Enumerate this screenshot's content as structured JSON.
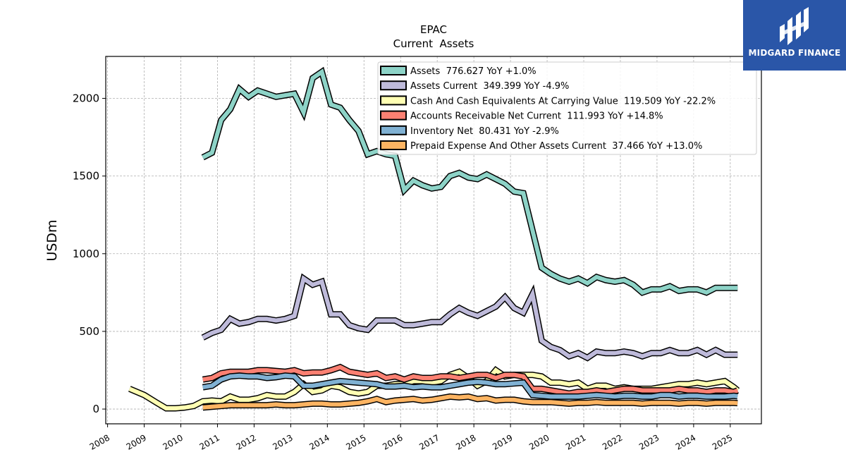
{
  "chart_data": {
    "type": "line",
    "title": "EPAC",
    "subtitle": "Current  Assets",
    "ylabel": "USDm",
    "xlim": [
      2007.95,
      2025.85
    ],
    "ylim": [
      -95,
      2270
    ],
    "yticks": [
      0,
      500,
      1000,
      1500,
      2000
    ],
    "xticks": [
      "2008",
      "2009",
      "2010",
      "2011",
      "2012",
      "2013",
      "2014",
      "2015",
      "2016",
      "2017",
      "2018",
      "2019",
      "2020",
      "2021",
      "2022",
      "2023",
      "2024",
      "2025"
    ],
    "grid": true,
    "legend_position": "top-right",
    "series": [
      {
        "name": "Assets",
        "legend": "Assets  776.627 YoY +1.0%",
        "color": "#8dd3c7",
        "x": [
          2010.6,
          2010.85,
          2011.1,
          2011.35,
          2011.6,
          2011.85,
          2012.1,
          2012.35,
          2012.6,
          2012.85,
          2013.1,
          2013.35,
          2013.6,
          2013.85,
          2014.1,
          2014.35,
          2014.6,
          2014.85,
          2015.1,
          2015.35,
          2015.6,
          2015.85,
          2016.1,
          2016.35,
          2016.6,
          2016.85,
          2017.1,
          2017.35,
          2017.6,
          2017.85,
          2018.1,
          2018.35,
          2018.6,
          2018.85,
          2019.1,
          2019.35,
          2019.6,
          2019.85,
          2020.1,
          2020.35,
          2020.6,
          2020.85,
          2021.1,
          2021.35,
          2021.6,
          2021.85,
          2022.1,
          2022.35,
          2022.6,
          2022.85,
          2023.1,
          2023.35,
          2023.6,
          2023.85,
          2024.1,
          2024.35,
          2024.6,
          2024.85,
          2025.1,
          2025.2
        ],
        "y": [
          1620,
          1650,
          1860,
          1930,
          2060,
          2010,
          2050,
          2030,
          2010,
          2020,
          2030,
          1910,
          2130,
          2170,
          1960,
          1940,
          1860,
          1790,
          1640,
          1660,
          1640,
          1630,
          1410,
          1470,
          1440,
          1420,
          1430,
          1500,
          1520,
          1490,
          1480,
          1510,
          1480,
          1450,
          1400,
          1390,
          1150,
          910,
          870,
          840,
          820,
          840,
          810,
          850,
          830,
          820,
          830,
          800,
          750,
          770,
          770,
          790,
          760,
          770,
          770,
          750,
          780,
          780,
          780,
          780
        ]
      },
      {
        "name": "Assets Current",
        "legend": "Assets Current  349.399 YoY -4.9%",
        "color": "#bebada",
        "x": [
          2010.6,
          2010.85,
          2011.1,
          2011.35,
          2011.6,
          2011.85,
          2012.1,
          2012.35,
          2012.6,
          2012.85,
          2013.1,
          2013.35,
          2013.6,
          2013.85,
          2014.1,
          2014.35,
          2014.6,
          2014.85,
          2015.1,
          2015.35,
          2015.6,
          2015.85,
          2016.1,
          2016.35,
          2016.6,
          2016.85,
          2017.1,
          2017.35,
          2017.6,
          2017.85,
          2018.1,
          2018.35,
          2018.6,
          2018.85,
          2019.1,
          2019.35,
          2019.6,
          2019.85,
          2020.1,
          2020.35,
          2020.6,
          2020.85,
          2021.1,
          2021.35,
          2021.6,
          2021.85,
          2022.1,
          2022.35,
          2022.6,
          2022.85,
          2023.1,
          2023.35,
          2023.6,
          2023.85,
          2024.1,
          2024.35,
          2024.6,
          2024.85,
          2025.1,
          2025.2
        ],
        "y": [
          460,
          490,
          510,
          580,
          550,
          560,
          580,
          580,
          570,
          580,
          600,
          840,
          800,
          820,
          610,
          610,
          540,
          520,
          510,
          570,
          570,
          570,
          540,
          540,
          550,
          560,
          560,
          610,
          650,
          620,
          600,
          630,
          660,
          720,
          650,
          620,
          740,
          440,
          400,
          380,
          340,
          360,
          330,
          370,
          360,
          360,
          370,
          360,
          340,
          360,
          360,
          380,
          360,
          360,
          380,
          350,
          380,
          350,
          350,
          350
        ]
      },
      {
        "name": "Cash And Cash Equivalents At Carrying Value",
        "legend": "Cash And Cash Equivalents At Carrying Value  119.509 YoY -22.2%",
        "color": "#ffffb3",
        "x": [
          2008.6,
          2009.0,
          2009.35,
          2009.6,
          2009.85,
          2010.1,
          2010.35,
          2010.6,
          2010.85,
          2011.1,
          2011.35,
          2011.6,
          2011.85,
          2012.1,
          2012.35,
          2012.6,
          2012.85,
          2013.1,
          2013.35,
          2013.6,
          2013.85,
          2014.1,
          2014.35,
          2014.6,
          2014.85,
          2015.1,
          2015.35,
          2015.6,
          2015.85,
          2016.1,
          2016.35,
          2016.6,
          2016.85,
          2017.1,
          2017.35,
          2017.6,
          2017.85,
          2018.1,
          2018.35,
          2018.6,
          2018.85,
          2019.1,
          2019.35,
          2019.6,
          2019.85,
          2020.1,
          2020.35,
          2020.6,
          2020.85,
          2021.1,
          2021.35,
          2021.6,
          2021.85,
          2022.1,
          2022.35,
          2022.6,
          2022.85,
          2023.1,
          2023.35,
          2023.6,
          2023.85,
          2024.1,
          2024.35,
          2024.6,
          2024.85,
          2025.1,
          2025.2
        ],
        "y": [
          130,
          90,
          40,
          5,
          5,
          10,
          20,
          50,
          55,
          50,
          80,
          60,
          60,
          70,
          90,
          80,
          80,
          110,
          160,
          110,
          120,
          150,
          140,
          110,
          100,
          110,
          150,
          150,
          160,
          160,
          180,
          180,
          170,
          180,
          220,
          240,
          200,
          150,
          180,
          250,
          210,
          220,
          220,
          220,
          210,
          170,
          170,
          160,
          170,
          130,
          150,
          150,
          130,
          140,
          130,
          130,
          130,
          140,
          150,
          160,
          160,
          170,
          160,
          170,
          180,
          140,
          120
        ]
      },
      {
        "name": "Accounts Receivable Net Current",
        "legend": "Accounts Receivable Net Current  111.993 YoY +14.8%",
        "color": "#fb8072",
        "x": [
          2010.6,
          2010.85,
          2011.1,
          2011.35,
          2011.6,
          2011.85,
          2012.1,
          2012.35,
          2012.6,
          2012.85,
          2013.1,
          2013.35,
          2013.6,
          2013.85,
          2014.1,
          2014.35,
          2014.6,
          2014.85,
          2015.1,
          2015.35,
          2015.6,
          2015.85,
          2016.1,
          2016.35,
          2016.6,
          2016.85,
          2017.1,
          2017.35,
          2017.6,
          2017.85,
          2018.1,
          2018.35,
          2018.6,
          2018.85,
          2019.1,
          2019.35,
          2019.6,
          2019.85,
          2020.1,
          2020.35,
          2020.6,
          2020.85,
          2021.1,
          2021.35,
          2021.6,
          2021.85,
          2022.1,
          2022.35,
          2022.6,
          2022.85,
          2023.1,
          2023.35,
          2023.6,
          2023.85,
          2024.1,
          2024.35,
          2024.6,
          2024.85,
          2025.1,
          2025.2
        ],
        "y": [
          190,
          200,
          230,
          240,
          240,
          240,
          250,
          250,
          245,
          240,
          250,
          230,
          235,
          235,
          250,
          270,
          240,
          230,
          220,
          230,
          200,
          210,
          190,
          210,
          200,
          200,
          210,
          210,
          200,
          210,
          220,
          220,
          200,
          220,
          220,
          210,
          130,
          130,
          120,
          110,
          100,
          110,
          110,
          120,
          110,
          120,
          130,
          130,
          120,
          120,
          120,
          120,
          130,
          120,
          120,
          110,
          120,
          120,
          110,
          120
        ]
      },
      {
        "name": "Inventory Net",
        "legend": "Inventory Net  80.431 YoY -2.9%",
        "color": "#80b1d3",
        "x": [
          2010.6,
          2010.85,
          2011.1,
          2011.35,
          2011.6,
          2011.85,
          2012.1,
          2012.35,
          2012.6,
          2012.85,
          2013.1,
          2013.35,
          2013.6,
          2013.85,
          2014.1,
          2014.35,
          2014.6,
          2014.85,
          2015.1,
          2015.35,
          2015.6,
          2015.85,
          2016.1,
          2016.35,
          2016.6,
          2016.85,
          2017.1,
          2017.35,
          2017.6,
          2017.85,
          2018.1,
          2018.35,
          2018.6,
          2018.85,
          2019.1,
          2019.35,
          2019.6,
          2019.85,
          2020.1,
          2020.35,
          2020.6,
          2020.85,
          2021.1,
          2021.35,
          2021.6,
          2021.85,
          2022.1,
          2022.35,
          2022.6,
          2022.85,
          2023.1,
          2023.35,
          2023.6,
          2023.85,
          2024.1,
          2024.35,
          2024.6,
          2024.85,
          2025.1,
          2025.2
        ],
        "y": [
          140,
          150,
          190,
          210,
          215,
          210,
          210,
          200,
          205,
          215,
          210,
          150,
          150,
          160,
          170,
          180,
          175,
          170,
          165,
          160,
          145,
          145,
          150,
          140,
          145,
          140,
          140,
          150,
          160,
          170,
          175,
          170,
          160,
          160,
          165,
          170,
          90,
          85,
          80,
          80,
          80,
          80,
          85,
          90,
          85,
          80,
          85,
          85,
          80,
          80,
          90,
          90,
          80,
          85,
          85,
          80,
          80,
          80,
          85,
          82
        ]
      },
      {
        "name": "Prepaid Expense And Other Assets Current",
        "legend": "Prepaid Expense And Other Assets Current  37.466 YoY +13.0%",
        "color": "#fdb462",
        "x": [
          2010.6,
          2010.85,
          2011.1,
          2011.35,
          2011.6,
          2011.85,
          2012.1,
          2012.35,
          2012.6,
          2012.85,
          2013.1,
          2013.35,
          2013.6,
          2013.85,
          2014.1,
          2014.35,
          2014.6,
          2014.85,
          2015.1,
          2015.35,
          2015.6,
          2015.85,
          2016.1,
          2016.35,
          2016.6,
          2016.85,
          2017.1,
          2017.35,
          2017.6,
          2017.85,
          2018.1,
          2018.35,
          2018.6,
          2018.85,
          2019.1,
          2019.35,
          2019.6,
          2019.85,
          2020.1,
          2020.35,
          2020.6,
          2020.85,
          2021.1,
          2021.35,
          2021.6,
          2021.85,
          2022.1,
          2022.35,
          2022.6,
          2022.85,
          2023.1,
          2023.35,
          2023.6,
          2023.85,
          2024.1,
          2024.35,
          2024.6,
          2024.85,
          2025.1,
          2025.2
        ],
        "y": [
          10,
          15,
          20,
          25,
          25,
          25,
          25,
          25,
          30,
          25,
          25,
          30,
          35,
          35,
          30,
          30,
          35,
          40,
          50,
          65,
          45,
          55,
          60,
          65,
          55,
          60,
          70,
          80,
          75,
          80,
          65,
          70,
          55,
          60,
          60,
          50,
          45,
          45,
          45,
          40,
          35,
          40,
          40,
          45,
          40,
          40,
          40,
          40,
          35,
          40,
          40,
          40,
          35,
          40,
          40,
          35,
          40,
          40,
          40,
          38
        ]
      }
    ]
  },
  "logo": {
    "text": "MIDGARD FINANCE",
    "color": "#2a56a8"
  }
}
